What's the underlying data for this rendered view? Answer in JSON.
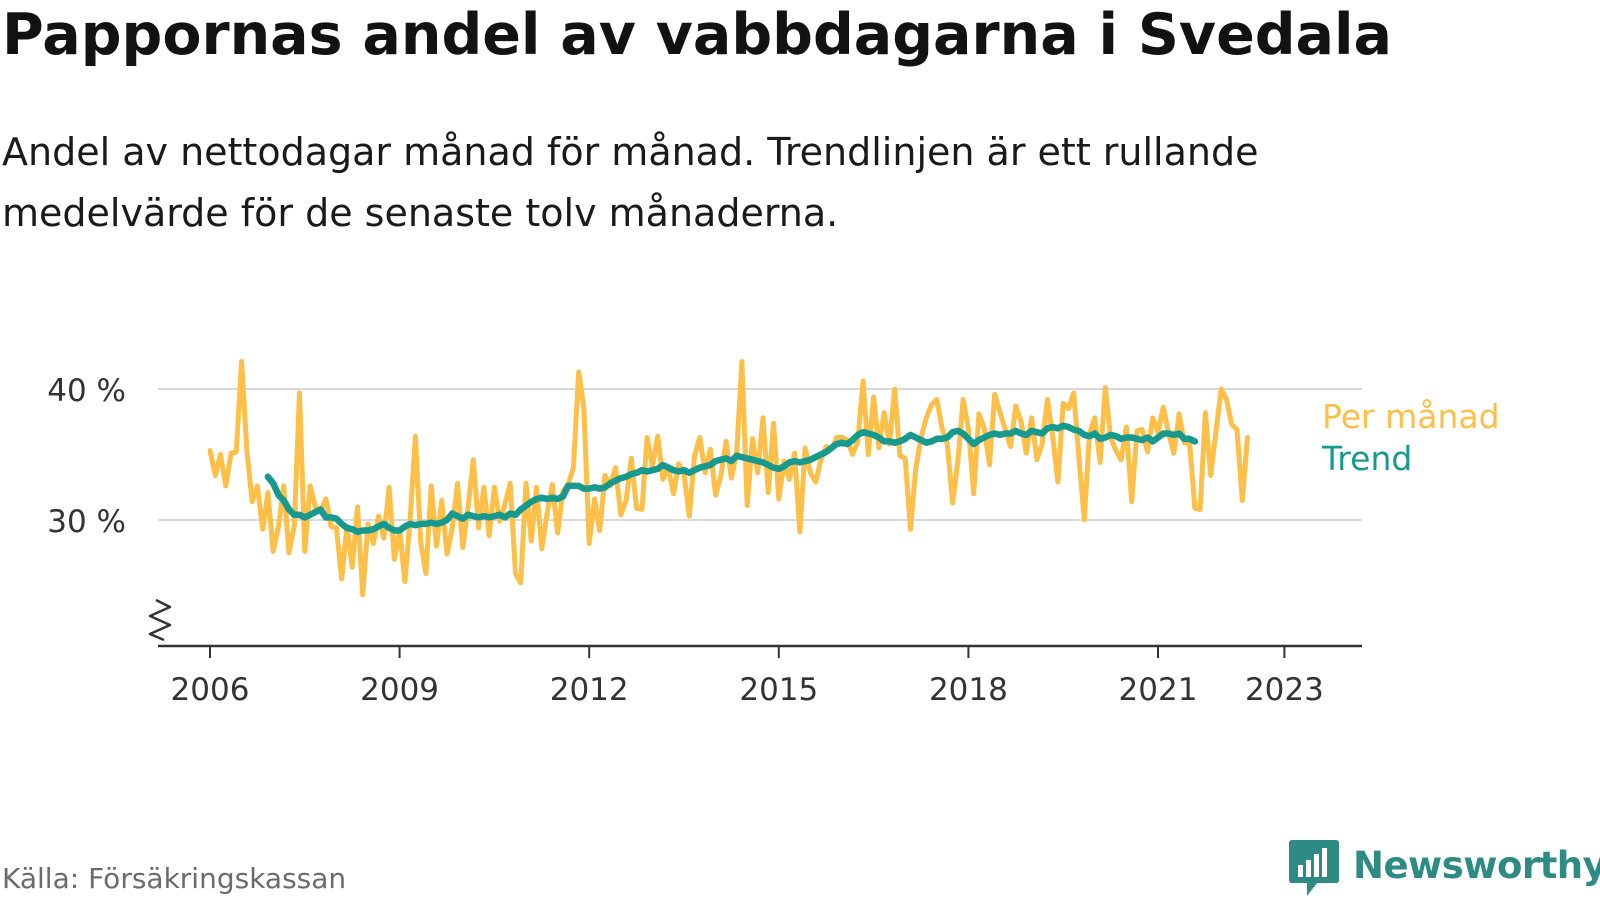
{
  "title": "Pappornas andel av vabbdagarna i Svedala",
  "subtitle": "Andel av nettodagar månad för månad. Trendlinjen är ett rullande medelvärde för de senaste tolv månaderna.",
  "source": "Källa: Försäkringskassan",
  "logo": {
    "text": "Newsworthy",
    "icon": "bar-chart-speech-bubble-icon",
    "color": "#2e8b84"
  },
  "chart_data": {
    "type": "line",
    "x_start": "2006-01",
    "x_step": "month",
    "y_unit": "%",
    "yticks": [
      30,
      40
    ],
    "ytick_labels": [
      "30 %",
      "40 %"
    ],
    "ylim": [
      20,
      42
    ],
    "xticks": [
      2006,
      2009,
      2012,
      2015,
      2018,
      2021,
      2023
    ],
    "xtick_labels": [
      "2006",
      "2009",
      "2012",
      "2015",
      "2018",
      "2021",
      "2023"
    ],
    "axis_break": true,
    "grid": "horizontal",
    "legend": "right-end-labels",
    "series": [
      {
        "name": "Per månad",
        "color": "#fdbf47",
        "values": [
          35.3,
          33.4,
          35.0,
          32.6,
          35.1,
          35.2,
          42.1,
          35.3,
          31.4,
          32.6,
          29.3,
          32.1,
          27.6,
          29.5,
          32.6,
          27.5,
          29.6,
          39.7,
          27.6,
          32.6,
          31.0,
          30.7,
          31.6,
          29.5,
          29.4,
          25.5,
          29.5,
          26.4,
          31.0,
          24.3,
          29.7,
          28.2,
          30.3,
          28.6,
          32.5,
          27.0,
          29.2,
          25.3,
          30.0,
          36.4,
          28.3,
          25.9,
          32.6,
          28.0,
          31.5,
          27.4,
          29.4,
          32.8,
          27.9,
          31.0,
          34.6,
          29.4,
          32.5,
          28.8,
          32.5,
          29.9,
          31.2,
          32.8,
          25.9,
          25.2,
          32.8,
          28.4,
          32.5,
          27.8,
          30.5,
          32.7,
          29.0,
          32.2,
          32.7,
          34.0,
          41.3,
          38.5,
          28.2,
          31.6,
          29.2,
          33.4,
          32.6,
          34.0,
          30.4,
          31.5,
          34.7,
          30.9,
          30.8,
          36.3,
          34.1,
          36.4,
          33.1,
          34.0,
          32.0,
          34.3,
          33.5,
          30.3,
          34.9,
          36.3,
          33.6,
          35.4,
          31.9,
          33.4,
          36.0,
          33.2,
          35.2,
          42.1,
          31.1,
          36.2,
          33.6,
          37.8,
          32.1,
          37.4,
          31.6,
          34.5,
          33.1,
          35.1,
          29.1,
          35.5,
          33.6,
          32.9,
          34.6,
          35.6,
          35.4,
          36.3,
          36.3,
          36.1,
          35.0,
          36.0,
          40.6,
          35.0,
          39.4,
          35.5,
          38.2,
          35.8,
          40.0,
          34.9,
          34.7,
          29.3,
          33.9,
          36.3,
          37.8,
          38.8,
          39.2,
          37.0,
          35.8,
          31.3,
          34.5,
          39.2,
          37.0,
          32.0,
          38.1,
          37.0,
          34.2,
          39.6,
          38.2,
          36.9,
          35.6,
          38.7,
          37.5,
          35.1,
          37.8,
          34.6,
          35.8,
          39.2,
          36.4,
          32.9,
          38.9,
          38.5,
          39.7,
          34.7,
          30.0,
          36.6,
          37.8,
          34.4,
          40.1,
          36.3,
          35.3,
          34.6,
          37.1,
          31.4,
          36.8,
          36.9,
          35.2,
          37.8,
          36.7,
          38.6,
          36.7,
          35.1,
          38.1,
          35.9,
          35.8,
          30.9,
          30.8,
          38.2,
          33.4,
          36.7,
          40.0,
          39.2,
          37.3,
          36.9,
          31.5,
          36.3
        ]
      },
      {
        "name": "Trend",
        "color": "#17998d",
        "start_index": 11,
        "values": [
          33.3,
          32.8,
          31.9,
          31.5,
          30.8,
          30.4,
          30.4,
          30.2,
          30.4,
          30.6,
          30.8,
          30.2,
          30.2,
          30.1,
          29.7,
          29.4,
          29.3,
          29.1,
          29.2,
          29.2,
          29.3,
          29.5,
          29.7,
          29.4,
          29.2,
          29.2,
          29.5,
          29.7,
          29.6,
          29.7,
          29.7,
          29.8,
          29.7,
          29.8,
          30.0,
          30.5,
          30.3,
          30.1,
          30.4,
          30.3,
          30.2,
          30.3,
          30.2,
          30.3,
          30.4,
          30.2,
          30.5,
          30.4,
          30.8,
          31.1,
          31.4,
          31.6,
          31.7,
          31.6,
          31.7,
          31.6,
          31.8,
          32.6,
          32.6,
          32.6,
          32.4,
          32.4,
          32.5,
          32.4,
          32.5,
          32.8,
          33.0,
          33.2,
          33.3,
          33.5,
          33.6,
          33.8,
          33.7,
          33.8,
          33.9,
          34.2,
          34.0,
          33.8,
          33.7,
          33.8,
          33.6,
          33.8,
          34.0,
          34.1,
          34.2,
          34.5,
          34.6,
          34.7,
          34.5,
          34.9,
          34.8,
          34.7,
          34.6,
          34.5,
          34.4,
          34.2,
          34.0,
          33.9,
          34.1,
          34.4,
          34.5,
          34.4,
          34.5,
          34.6,
          34.8,
          35.0,
          35.2,
          35.5,
          35.8,
          35.9,
          35.8,
          36.1,
          36.5,
          36.7,
          36.6,
          36.5,
          36.3,
          36.0,
          36.0,
          35.9,
          36.0,
          36.2,
          36.5,
          36.3,
          36.1,
          35.9,
          36.0,
          36.2,
          36.2,
          36.3,
          36.7,
          36.8,
          36.6,
          36.2,
          35.8,
          36.1,
          36.3,
          36.5,
          36.6,
          36.5,
          36.6,
          36.6,
          36.8,
          36.6,
          36.5,
          36.8,
          36.7,
          36.6,
          37.0,
          37.1,
          37.0,
          37.2,
          37.1,
          36.9,
          36.8,
          36.5,
          36.4,
          36.6,
          36.2,
          36.3,
          36.5,
          36.4,
          36.2,
          36.3,
          36.3,
          36.2,
          36.1,
          36.3,
          36.0,
          36.3,
          36.6,
          36.6,
          36.5,
          36.6,
          36.2,
          36.2,
          36.0
        ]
      }
    ]
  }
}
